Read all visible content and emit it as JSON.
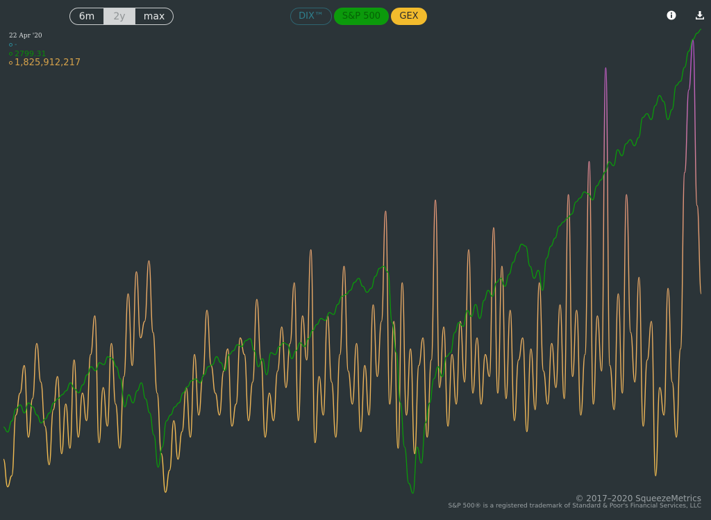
{
  "range_buttons": {
    "m6": "6m",
    "y2": "2y",
    "max": "max",
    "selected": "2y"
  },
  "series_buttons": {
    "dix": "DIX™",
    "spx": "S&P 500",
    "gex": "GEX"
  },
  "icons": {
    "info": "info-icon",
    "download": "download-icon"
  },
  "readout": {
    "date": "22 Apr '20",
    "dix_value": "-",
    "spx_value": "2799.31",
    "gex_value": "1,825,912,217"
  },
  "colors": {
    "background": "#2b3438",
    "spx": "#0a9a0a",
    "gex_low": "#f5c04e",
    "gex_mid": "#e3957a",
    "gex_high": "#b24ad0",
    "dix": "#2f7f8d"
  },
  "footer": {
    "copyright": "© 2017–2020 SqueezeMetrics",
    "trademark": "S&P 500® is a registered trademark of Standard & Poor's Financial Services, LLC"
  },
  "chart_data": {
    "type": "line",
    "grid": false,
    "x_range": "2y",
    "series": [
      {
        "key": "spx",
        "label": "S&P 500",
        "y": [
          2580,
          2555,
          2610,
          2670,
          2690,
          2650,
          2700,
          2680,
          2640,
          2600,
          2620,
          2650,
          2700,
          2720,
          2740,
          2760,
          2800,
          2770,
          2750,
          2790,
          2840,
          2880,
          2860,
          2900,
          2890,
          2930,
          2920,
          2880,
          2820,
          2680,
          2740,
          2700,
          2760,
          2800,
          2720,
          2650,
          2540,
          2380,
          2480,
          2610,
          2640,
          2680,
          2700,
          2750,
          2780,
          2810,
          2820,
          2800,
          2840,
          2880,
          2890,
          2930,
          2900,
          2860,
          2940,
          2960,
          2990,
          2980,
          3010,
          3020,
          2960,
          2880,
          2920,
          2840,
          2950,
          2940,
          2980,
          3000,
          2990,
          2920,
          2960,
          3000,
          2980,
          3020,
          3060,
          3090,
          3120,
          3110,
          3150,
          3140,
          3190,
          3230,
          3240,
          3260,
          3300,
          3320,
          3280,
          3250,
          3270,
          3330,
          3370,
          3380,
          3350,
          3100,
          2950,
          2700,
          2480,
          2300,
          2250,
          2480,
          2400,
          2600,
          2700,
          2820,
          2880,
          2830,
          2930,
          2950,
          3050,
          3100,
          3080,
          3160,
          3130,
          3190,
          3120,
          3210,
          3260,
          3230,
          3300,
          3320,
          3280,
          3340,
          3400,
          3450,
          3490,
          3480,
          3380,
          3320,
          3360,
          3260,
          3420,
          3480,
          3520,
          3580,
          3600,
          3620,
          3640,
          3700,
          3720,
          3750,
          3740,
          3710,
          3780,
          3810,
          3850,
          3900,
          3880,
          3960,
          3930,
          3990,
          4010,
          3980,
          4020,
          4120,
          4140,
          4110,
          4180,
          4230,
          4200,
          4110,
          4160,
          4280,
          4300,
          4370,
          4450,
          4510,
          4540,
          4560
        ],
        "range": [
          2200,
          4560
        ]
      },
      {
        "key": "gex",
        "label": "GEX",
        "y": [
          0.8,
          0.3,
          0.5,
          1.6,
          2.0,
          2.5,
          1.2,
          1.9,
          2.9,
          2.2,
          1.4,
          0.7,
          1.7,
          2.3,
          0.9,
          1.8,
          1.0,
          2.6,
          1.2,
          2.0,
          1.5,
          2.7,
          3.4,
          1.1,
          2.1,
          1.4,
          2.9,
          1.8,
          1.0,
          2.3,
          3.8,
          2.5,
          4.2,
          3.0,
          3.3,
          4.4,
          3.1,
          2.0,
          0.9,
          0.2,
          0.6,
          1.5,
          0.8,
          1.3,
          2.1,
          1.2,
          2.7,
          1.6,
          2.3,
          3.5,
          2.5,
          2.0,
          1.6,
          2.4,
          2.8,
          1.4,
          1.8,
          3.0,
          2.7,
          1.5,
          2.2,
          3.7,
          2.6,
          1.2,
          2.0,
          1.5,
          2.4,
          3.2,
          2.1,
          2.9,
          4.0,
          1.5,
          3.4,
          2.6,
          4.6,
          1.1,
          2.3,
          1.6,
          3.4,
          2.2,
          1.2,
          2.7,
          4.3,
          2.4,
          1.8,
          2.9,
          1.3,
          2.5,
          1.6,
          3.6,
          2.3,
          3.3,
          5.3,
          1.8,
          3.3,
          1.0,
          4.0,
          1.6,
          2.8,
          0.9,
          2.5,
          3.0,
          1.2,
          2.6,
          5.5,
          2.1,
          3.2,
          1.4,
          2.7,
          1.8,
          3.3,
          2.2,
          4.6,
          2.0,
          3.0,
          1.8,
          2.7,
          2.3,
          5.0,
          2.0,
          4.3,
          1.9,
          3.5,
          1.5,
          2.6,
          3.0,
          1.3,
          2.8,
          1.7,
          4.0,
          2.4,
          1.8,
          2.9,
          2.1,
          3.6,
          1.9,
          5.6,
          2.3,
          3.5,
          1.6,
          2.7,
          6.2,
          1.8,
          3.4,
          2.4,
          7.9,
          2.5,
          1.7,
          3.8,
          2.0,
          5.6,
          3.1,
          2.2,
          4.1,
          1.4,
          2.6,
          3.3,
          0.5,
          2.1,
          1.6,
          3.9,
          2.2,
          1.2,
          2.8,
          6.0,
          7.5,
          8.4,
          5.4,
          3.8
        ],
        "range": [
          0,
          8.6
        ]
      }
    ]
  }
}
